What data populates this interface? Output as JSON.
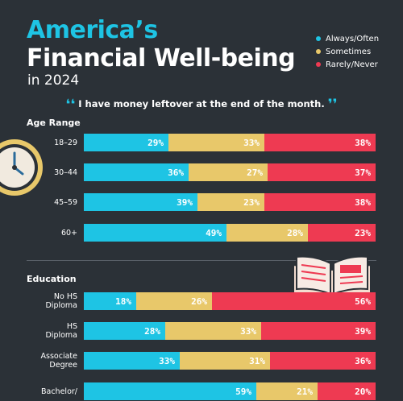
{
  "header": {
    "title_line1": "America’s",
    "title_line2": "Financial Well-being",
    "title_line3": "in 2024"
  },
  "legend": [
    {
      "label": "Always/Often",
      "color": "#1ec4e4"
    },
    {
      "label": "Sometimes",
      "color": "#e8c86a"
    },
    {
      "label": "Rarely/Never",
      "color": "#ee3a52"
    }
  ],
  "quote": {
    "open": "❛❛",
    "text": "I have money leftover at the end of the month.",
    "close": "❜❜"
  },
  "icons": [
    "clock-icon",
    "book-icon"
  ],
  "chart_data": {
    "type": "bar",
    "orientation": "horizontal",
    "stacked": true,
    "normalized": true,
    "series_names": [
      "Always/Often",
      "Sometimes",
      "Rarely/Never"
    ],
    "colors": [
      "#1ec4e4",
      "#e8c86a",
      "#ee3a52"
    ],
    "groups": [
      {
        "title": "Age Range",
        "rows": [
          {
            "label": [
              "18–29"
            ],
            "values": [
              29,
              33,
              38
            ]
          },
          {
            "label": [
              "30–44"
            ],
            "values": [
              36,
              27,
              37
            ]
          },
          {
            "label": [
              "45–59"
            ],
            "values": [
              39,
              23,
              38
            ]
          },
          {
            "label": [
              "60+"
            ],
            "values": [
              49,
              28,
              23
            ]
          }
        ]
      },
      {
        "title": "Education",
        "rows": [
          {
            "label": [
              "No HS",
              "Diploma"
            ],
            "values": [
              18,
              26,
              56
            ]
          },
          {
            "label": [
              "HS",
              "Diploma"
            ],
            "values": [
              28,
              33,
              39
            ]
          },
          {
            "label": [
              "Associate",
              "Degree"
            ],
            "values": [
              33,
              31,
              36
            ]
          },
          {
            "label": [
              "Bachelor/",
              ""
            ],
            "values": [
              59,
              21,
              20
            ]
          }
        ]
      }
    ]
  }
}
